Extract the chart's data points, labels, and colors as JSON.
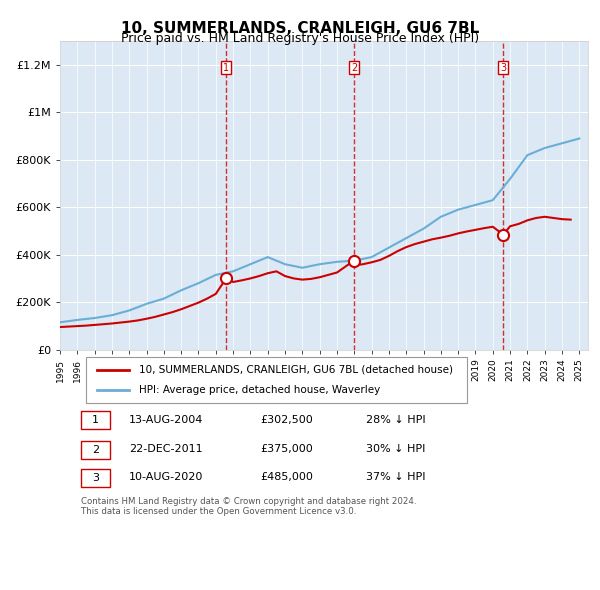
{
  "title": "10, SUMMERLANDS, CRANLEIGH, GU6 7BL",
  "subtitle": "Price paid vs. HM Land Registry's House Price Index (HPI)",
  "ylabel_ticks": [
    "£0",
    "£200K",
    "£400K",
    "£600K",
    "£800K",
    "£1M",
    "£1.2M"
  ],
  "ytick_values": [
    0,
    200000,
    400000,
    600000,
    800000,
    1000000,
    1200000
  ],
  "ylim": [
    0,
    1300000
  ],
  "xlim_start": 1995.0,
  "xlim_end": 2025.5,
  "background_color": "#dce9f5",
  "plot_bg_color": "#dce9f5",
  "hpi_color": "#6aaed6",
  "price_color": "#cc0000",
  "sale_marker_color": "#cc0000",
  "dashed_line_color": "#cc0000",
  "legend_box_label1": "10, SUMMERLANDS, CRANLEIGH, GU6 7BL (detached house)",
  "legend_box_label2": "HPI: Average price, detached house, Waverley",
  "table_rows": [
    {
      "num": "1",
      "date": "13-AUG-2004",
      "price": "£302,500",
      "pct": "28% ↓ HPI"
    },
    {
      "num": "2",
      "date": "22-DEC-2011",
      "price": "£375,000",
      "pct": "30% ↓ HPI"
    },
    {
      "num": "3",
      "date": "10-AUG-2020",
      "price": "£485,000",
      "pct": "37% ↓ HPI"
    }
  ],
  "footer": "Contains HM Land Registry data © Crown copyright and database right 2024.\nThis data is licensed under the Open Government Licence v3.0.",
  "sales": [
    {
      "year": 2004.617,
      "price": 302500,
      "label": "1"
    },
    {
      "year": 2011.978,
      "price": 375000,
      "label": "2"
    },
    {
      "year": 2020.603,
      "price": 485000,
      "label": "3"
    }
  ],
  "hpi_years": [
    1995,
    1996,
    1997,
    1998,
    1999,
    2000,
    2001,
    2002,
    2003,
    2004,
    2005,
    2006,
    2007,
    2008,
    2009,
    2010,
    2011,
    2012,
    2013,
    2014,
    2015,
    2016,
    2017,
    2018,
    2019,
    2020,
    2021,
    2022,
    2023,
    2024,
    2025
  ],
  "hpi_values": [
    115000,
    125000,
    133000,
    145000,
    165000,
    193000,
    215000,
    250000,
    280000,
    315000,
    330000,
    360000,
    390000,
    360000,
    345000,
    360000,
    370000,
    375000,
    390000,
    430000,
    470000,
    510000,
    560000,
    590000,
    610000,
    630000,
    720000,
    820000,
    850000,
    870000,
    890000
  ],
  "price_years": [
    1995,
    1995.5,
    1996,
    1996.5,
    1997,
    1997.5,
    1998,
    1998.5,
    1999,
    1999.5,
    2000,
    2000.5,
    2001,
    2001.5,
    2002,
    2002.5,
    2003,
    2003.5,
    2004,
    2004.617,
    2005,
    2005.5,
    2006,
    2006.5,
    2007,
    2007.5,
    2008,
    2008.5,
    2009,
    2009.5,
    2010,
    2010.5,
    2011,
    2011.978,
    2012,
    2012.5,
    2013,
    2013.5,
    2014,
    2014.5,
    2015,
    2015.5,
    2016,
    2016.5,
    2017,
    2017.5,
    2018,
    2018.5,
    2019,
    2019.5,
    2020,
    2020.603,
    2021,
    2021.5,
    2022,
    2022.5,
    2023,
    2023.5,
    2024,
    2024.5
  ],
  "price_values": [
    95000,
    97000,
    99000,
    101000,
    104000,
    107000,
    110000,
    114000,
    118000,
    123000,
    130000,
    138000,
    148000,
    158000,
    170000,
    184000,
    198000,
    215000,
    235000,
    302500,
    285000,
    292000,
    300000,
    310000,
    322000,
    330000,
    310000,
    300000,
    295000,
    298000,
    305000,
    315000,
    325000,
    375000,
    355000,
    360000,
    368000,
    378000,
    395000,
    415000,
    432000,
    445000,
    455000,
    465000,
    472000,
    480000,
    490000,
    498000,
    505000,
    512000,
    518000,
    485000,
    520000,
    530000,
    545000,
    555000,
    560000,
    555000,
    550000,
    548000
  ]
}
